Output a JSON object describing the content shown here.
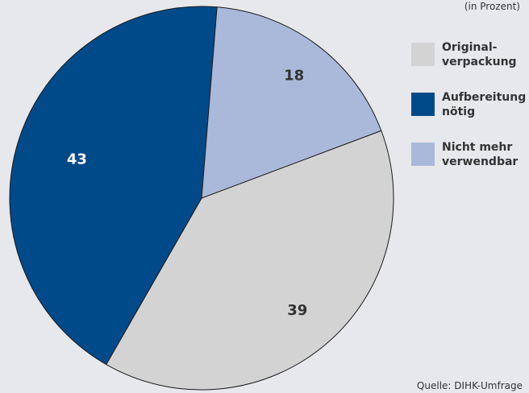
{
  "chart_data": {
    "type": "pie",
    "unit_note": "(in Prozent)",
    "source": "Quelle: DIHK-Umfrage",
    "legend_placement": "right",
    "slices": [
      {
        "label": "Original-\nverpackung",
        "value": 39,
        "color": "#d3d3d3",
        "label_color": "#333333"
      },
      {
        "label": "Aufbereitung\nnötig",
        "value": 43,
        "color": "#004a8a",
        "label_color": "#ffffff"
      },
      {
        "label": "Nicht mehr\nverwendbar",
        "value": 18,
        "color": "#aab9d9",
        "label_color": "#333333"
      }
    ]
  }
}
